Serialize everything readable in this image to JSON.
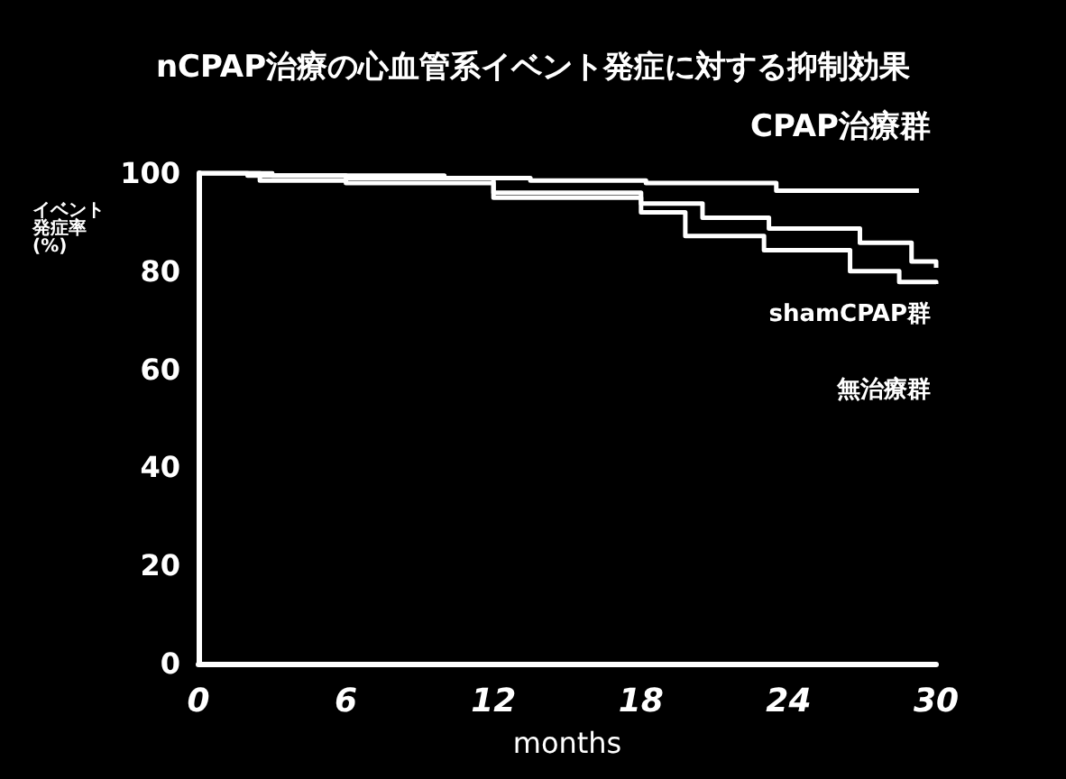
{
  "chart_data": {
    "type": "step",
    "title": "nCPAP治療の心血管系イベント発症に対する抑制効果",
    "xlabel": "months",
    "ylabel": "イベント発症率(%)",
    "annotations": [
      "CPAP治療群",
      "shamCPAP群",
      "無治療群"
    ],
    "xlim": [
      0,
      30
    ],
    "xticks": [
      0,
      6,
      12,
      18,
      24,
      30
    ],
    "ylim": [
      0,
      100
    ],
    "yticks": [
      0,
      20,
      40,
      60,
      80,
      100
    ],
    "grid": false,
    "marker": "none",
    "line_style": "solid",
    "series": [
      {
        "color": "#ffffff",
        "x": [
          0,
          3,
          10,
          13.5,
          18.2,
          23.5,
          29.3
        ],
        "values": [
          100,
          99.5,
          99,
          98.5,
          98,
          96.4,
          96.4
        ]
      },
      {
        "color": "#ffffff",
        "x": [
          0,
          2,
          6,
          12,
          18,
          20.5,
          23.2,
          26.9,
          29,
          30
        ],
        "values": [
          100,
          99.5,
          99,
          96,
          93.8,
          90.9,
          88.7,
          85.8,
          82,
          80.7
        ]
      },
      {
        "color": "#ffffff",
        "x": [
          0,
          2.5,
          6,
          12,
          18,
          19.8,
          23,
          26.5,
          28.5,
          30
        ],
        "values": [
          100,
          98.5,
          98,
          95,
          92,
          87.2,
          84.3,
          80,
          77.8,
          77.4
        ]
      }
    ]
  }
}
